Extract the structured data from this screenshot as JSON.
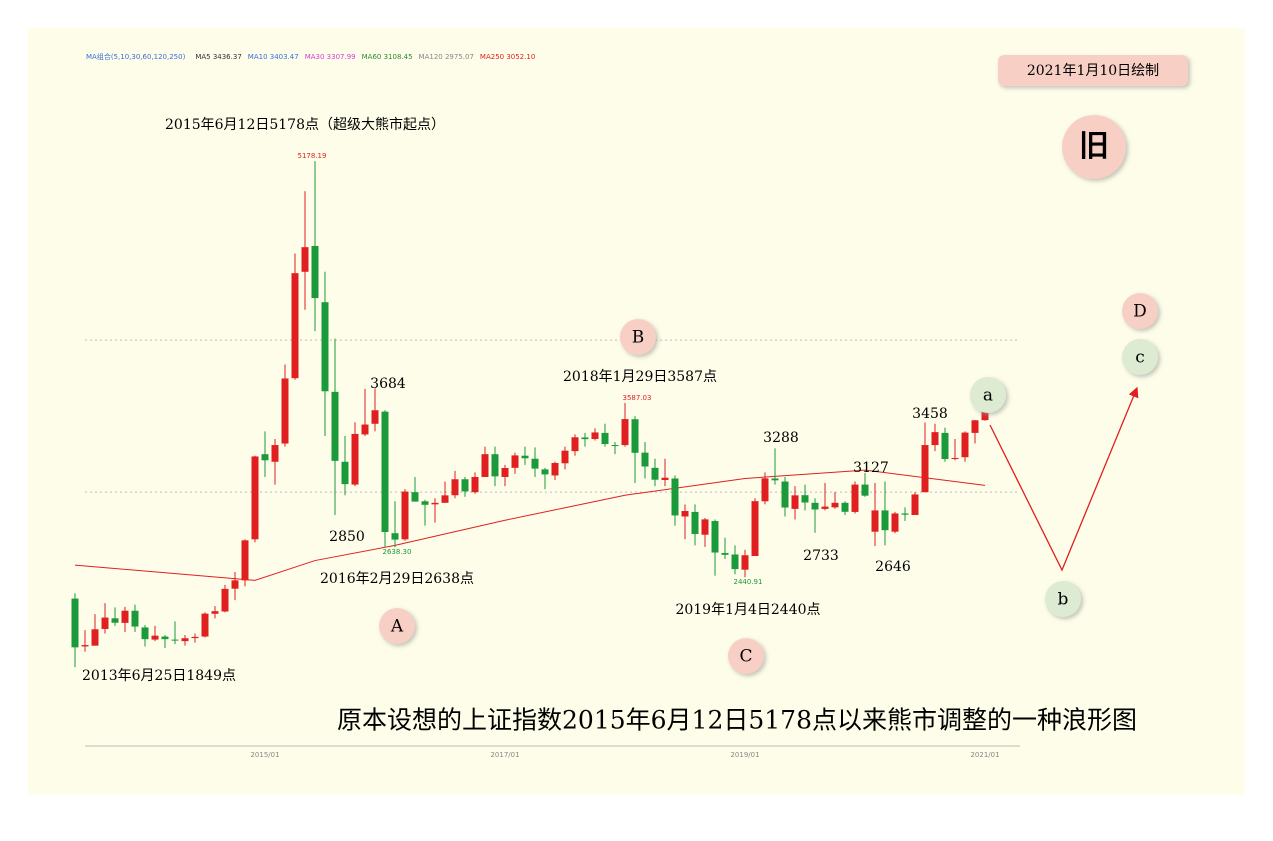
{
  "chart_data": {
    "type": "candlestick",
    "title": "原本设想的上证指数2015年6月12日5178点以来熊市调整的一种浪形图",
    "stamp": "2021年1月10日绘制",
    "badge": "旧",
    "ma_legend_title": "MA组合(5,10,30,60,120,250)",
    "ma_legend": [
      {
        "text": "MA5 3436.37",
        "color": "#333333"
      },
      {
        "text": "MA10 3403.47",
        "color": "#3b6fd8"
      },
      {
        "text": "MA30 3307.99",
        "color": "#d63cd6"
      },
      {
        "text": "MA60 3108.45",
        "color": "#2e8b2e"
      },
      {
        "text": "MA120 2975.07",
        "color": "#888888"
      },
      {
        "text": "MA250 3052.10",
        "color": "#e02020"
      }
    ],
    "categories": [
      "2013/06",
      "2013/07",
      "2013/08",
      "2013/09",
      "2013/10",
      "2013/11",
      "2013/12",
      "2014/01",
      "2014/02",
      "2014/03",
      "2014/04",
      "2014/05",
      "2014/06",
      "2014/07",
      "2014/08",
      "2014/09",
      "2014/10",
      "2014/11",
      "2014/12",
      "2015/01",
      "2015/02",
      "2015/03",
      "2015/04",
      "2015/05",
      "2015/06",
      "2015/07",
      "2015/08",
      "2015/09",
      "2015/10",
      "2015/11",
      "2015/12",
      "2016/01",
      "2016/02",
      "2016/03",
      "2016/04",
      "2016/05",
      "2016/06",
      "2016/07",
      "2016/08",
      "2016/09",
      "2016/10",
      "2016/11",
      "2016/12",
      "2017/01",
      "2017/02",
      "2017/03",
      "2017/04",
      "2017/05",
      "2017/06",
      "2017/07",
      "2017/08",
      "2017/09",
      "2017/10",
      "2017/11",
      "2017/12",
      "2018/01",
      "2018/02",
      "2018/03",
      "2018/04",
      "2018/05",
      "2018/06",
      "2018/07",
      "2018/08",
      "2018/09",
      "2018/10",
      "2018/11",
      "2018/12",
      "2019/01",
      "2019/02",
      "2019/03",
      "2019/04",
      "2019/05",
      "2019/06",
      "2019/07",
      "2019/08",
      "2019/09",
      "2019/10",
      "2019/11",
      "2019/12",
      "2020/01",
      "2020/02",
      "2020/03",
      "2020/04",
      "2020/05",
      "2020/06",
      "2020/07",
      "2020/08",
      "2020/09",
      "2020/10",
      "2020/11",
      "2020/12",
      "2021/01"
    ],
    "open": [
      2300,
      1985,
      1990,
      2100,
      2170,
      2140,
      2220,
      2110,
      2030,
      2050,
      2030,
      2020,
      2040,
      2050,
      2200,
      2215,
      2365,
      2420,
      2690,
      3250,
      3200,
      3320,
      3750,
      4450,
      4620,
      4250,
      3660,
      3200,
      3050,
      3380,
      3450,
      3530,
      2730,
      2690,
      3000,
      2940,
      2920,
      2930,
      2980,
      3085,
      3000,
      3100,
      3250,
      3100,
      3160,
      3240,
      3220,
      3150,
      3110,
      3190,
      3270,
      3360,
      3350,
      3390,
      3310,
      3310,
      3480,
      3260,
      3160,
      3080,
      3090,
      2840,
      2870,
      2720,
      2810,
      2600,
      2590,
      2490,
      2580,
      2940,
      3090,
      3070,
      2890,
      2980,
      2930,
      2890,
      2900,
      2930,
      2870,
      3050,
      2740,
      2880,
      2740,
      2860,
      2850,
      3000,
      3310,
      3390,
      3220,
      3230,
      3390,
      3474
    ],
    "high": [
      2335,
      2092,
      2198,
      2270,
      2242,
      2245,
      2260,
      2125,
      2120,
      2060,
      2150,
      2060,
      2070,
      2210,
      2250,
      2390,
      2475,
      2690,
      3240,
      3400,
      3350,
      3840,
      4570,
      4980,
      5178,
      4450,
      4010,
      3370,
      3460,
      3680,
      3684,
      3540,
      2940,
      3020,
      3100,
      2950,
      2960,
      3070,
      3140,
      3100,
      3130,
      3300,
      3300,
      3180,
      3260,
      3300,
      3295,
      3160,
      3200,
      3300,
      3380,
      3390,
      3420,
      3450,
      3330,
      3587,
      3500,
      3330,
      3220,
      3220,
      3110,
      2920,
      2920,
      2830,
      2820,
      2700,
      2650,
      2620,
      2960,
      3130,
      3288,
      3100,
      3040,
      3050,
      2960,
      3060,
      3000,
      2940,
      3070,
      3127,
      3060,
      3070,
      2870,
      2900,
      3000,
      3458,
      3450,
      3425,
      3350,
      3400,
      3475,
      3536
    ],
    "low": [
      1849,
      1951,
      1990,
      2070,
      2120,
      2080,
      2080,
      1985,
      2020,
      1975,
      2000,
      1990,
      2010,
      2045,
      2170,
      2210,
      2290,
      2380,
      2670,
      3100,
      3050,
      3300,
      3740,
      4200,
      4060,
      3370,
      2850,
      2980,
      3040,
      3370,
      3400,
      2640,
      2638,
      2680,
      2940,
      2780,
      2800,
      2930,
      2960,
      2970,
      2990,
      3100,
      3040,
      3040,
      3120,
      3180,
      3100,
      3020,
      3080,
      3150,
      3240,
      3300,
      3340,
      3300,
      3250,
      3300,
      3060,
      3090,
      3040,
      3040,
      2780,
      2690,
      2650,
      2640,
      2450,
      2560,
      2460,
      2440,
      2580,
      2920,
      3050,
      2840,
      2820,
      2880,
      2733,
      2880,
      2890,
      2850,
      2860,
      2970,
      2646,
      2650,
      2730,
      2810,
      2850,
      3000,
      3270,
      3200,
      3210,
      3200,
      3320,
      3470
    ],
    "close": [
      1979,
      1994,
      2098,
      2175,
      2141,
      2220,
      2116,
      2033,
      2056,
      2033,
      2026,
      2039,
      2048,
      2201,
      2217,
      2364,
      2420,
      2683,
      3235,
      3210,
      3310,
      3748,
      4441,
      4612,
      4277,
      3664,
      3206,
      3053,
      3383,
      3445,
      3539,
      2738,
      2688,
      3004,
      2938,
      2917,
      2930,
      2979,
      3085,
      3005,
      3100,
      3250,
      3104,
      3159,
      3242,
      3223,
      3155,
      3117,
      3192,
      3273,
      3361,
      3349,
      3393,
      3317,
      3307,
      3481,
      3259,
      3169,
      3082,
      3095,
      2847,
      2876,
      2725,
      2821,
      2603,
      2588,
      2494,
      2585,
      2941,
      3091,
      3078,
      2899,
      2979,
      2932,
      2886,
      2905,
      2930,
      2871,
      3050,
      2977,
      2880,
      2750,
      2860,
      2852,
      2985,
      3310,
      3395,
      3218,
      3225,
      3392,
      3473,
      3531
    ],
    "up_color": "#e02020",
    "down_color": "#1a9a3a",
    "ma_lines": [
      {
        "name": "MA250",
        "color": "#e02020",
        "x": [
          "2013/06",
          "2014/12",
          "2015/06",
          "2016/02",
          "2017/01",
          "2018/01",
          "2019/01",
          "2020/01",
          "2021/01"
        ],
        "values": [
          2520,
          2420,
          2550,
          2650,
          2815,
          2980,
          3090,
          3145,
          3045
        ]
      }
    ],
    "ylim": [
      1330,
      5975
    ],
    "grid_values": [
      3000,
      4000
    ],
    "xtick_labels": [
      "2015/01",
      "2017/01",
      "2019/01",
      "2021/01"
    ],
    "annotations": [
      "2015年6月12日5178点（超级大熊市起点）",
      "5178.19",
      "3684",
      "2850",
      "2638.30",
      "2016年2月29日2638点",
      "2018年1月29日3587点",
      "3587.03",
      "3288",
      "2440.91",
      "2019年1月4日2440点",
      "2733",
      "3127",
      "2646",
      "3458",
      "2013年6月25日1849点"
    ],
    "waves": [
      {
        "label": "A",
        "kind": "major"
      },
      {
        "label": "B",
        "kind": "major"
      },
      {
        "label": "C",
        "kind": "major"
      },
      {
        "label": "D",
        "kind": "major"
      },
      {
        "label": "a",
        "kind": "minor"
      },
      {
        "label": "b",
        "kind": "minor"
      },
      {
        "label": "c",
        "kind": "minor"
      }
    ]
  }
}
